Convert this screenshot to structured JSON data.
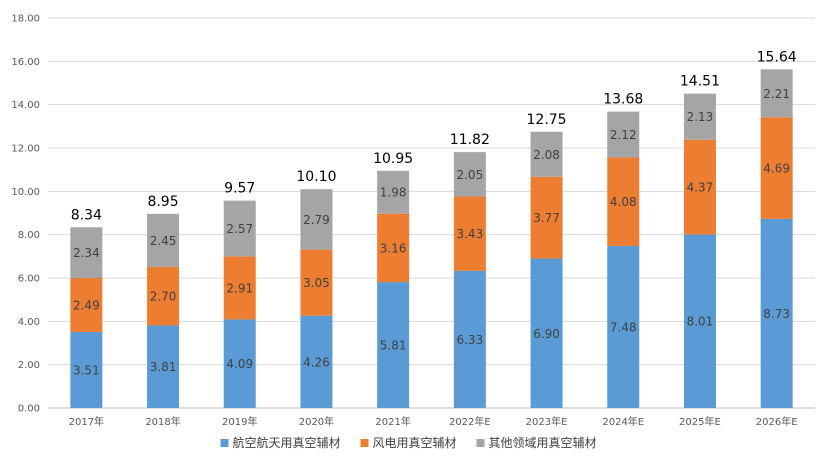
{
  "chart_data": {
    "type": "bar",
    "stacked": true,
    "categories": [
      "2017年",
      "2018年",
      "2019年",
      "2020年",
      "2021年",
      "2022年E",
      "2023年E",
      "2024年E",
      "2025年E",
      "2026年E"
    ],
    "series": [
      {
        "name": "航空航天用真空辅材",
        "color": "#5B9BD5",
        "values": [
          3.51,
          3.81,
          4.09,
          4.26,
          5.81,
          6.33,
          6.9,
          7.48,
          8.01,
          8.73
        ]
      },
      {
        "name": "风电用真空辅材",
        "color": "#ED7D31",
        "values": [
          2.49,
          2.7,
          2.91,
          3.05,
          3.16,
          3.43,
          3.77,
          4.08,
          4.37,
          4.69
        ]
      },
      {
        "name": "其他领域用真空辅材",
        "color": "#A5A5A5",
        "values": [
          2.34,
          2.45,
          2.57,
          2.79,
          1.98,
          2.05,
          2.08,
          2.12,
          2.13,
          2.21
        ]
      }
    ],
    "totals": [
      "8.34",
      "8.95",
      "9.57",
      "10.10",
      "10.95",
      "11.82",
      "12.75",
      "13.68",
      "14.51",
      "15.64"
    ],
    "y_ticks": [
      "0.00",
      "2.00",
      "4.00",
      "6.00",
      "8.00",
      "10.00",
      "12.00",
      "14.00",
      "16.00",
      "18.00"
    ],
    "ylim": [
      0,
      18
    ],
    "grid": true,
    "legend_position": "bottom",
    "title": "",
    "xlabel": "",
    "ylabel": ""
  }
}
